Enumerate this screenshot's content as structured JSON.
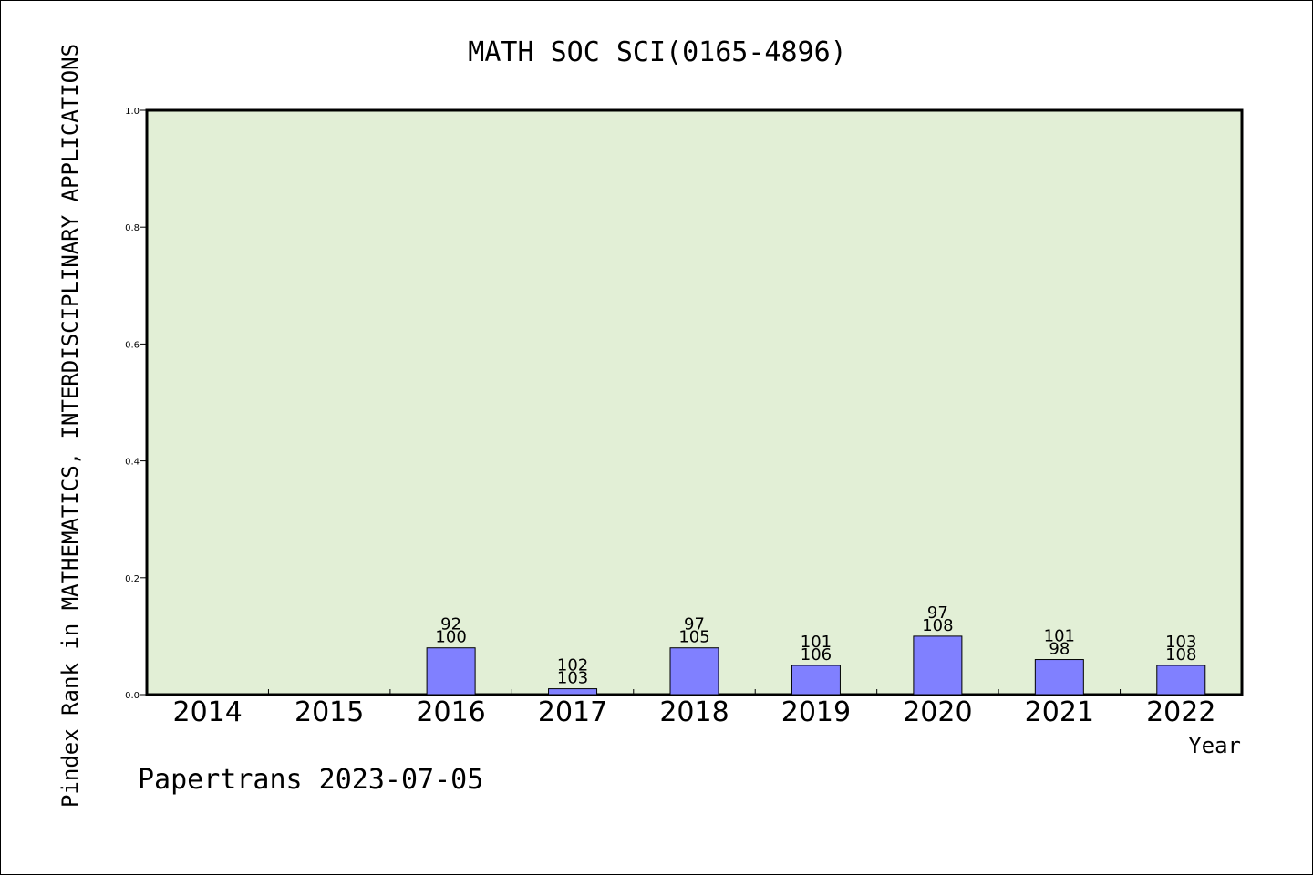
{
  "chart_data": {
    "type": "bar",
    "title": "MATH SOC SCI(0165-4896)",
    "xlabel": "Year",
    "ylabel": "Pindex Rank in MATHEMATICS, INTERDISCIPLINARY APPLICATIONS",
    "categories": [
      "2014",
      "2015",
      "2016",
      "2017",
      "2018",
      "2019",
      "2020",
      "2021",
      "2022"
    ],
    "values": [
      null,
      null,
      0.08,
      0.01,
      0.08,
      0.05,
      0.1,
      0.06,
      0.05
    ],
    "data_labels": [
      {
        "top": "",
        "bottom": ""
      },
      {
        "top": "",
        "bottom": ""
      },
      {
        "top": "92",
        "bottom": "100"
      },
      {
        "top": "102",
        "bottom": "103"
      },
      {
        "top": "97",
        "bottom": "105"
      },
      {
        "top": "101",
        "bottom": "106"
      },
      {
        "top": "97",
        "bottom": "108"
      },
      {
        "top": "101",
        "bottom": "98"
      },
      {
        "top": "103",
        "bottom": "108"
      }
    ],
    "ylim": [
      0,
      1.0
    ],
    "yticks": [
      "0.0",
      "0.2",
      "0.4",
      "0.6",
      "0.8",
      "1.0"
    ],
    "grid": false,
    "legend": "none",
    "colors": {
      "plot_background": "#e2efd6",
      "bar": "#8080ff",
      "bar_edge": "#000000"
    }
  },
  "footer": "Papertrans 2023-07-05"
}
